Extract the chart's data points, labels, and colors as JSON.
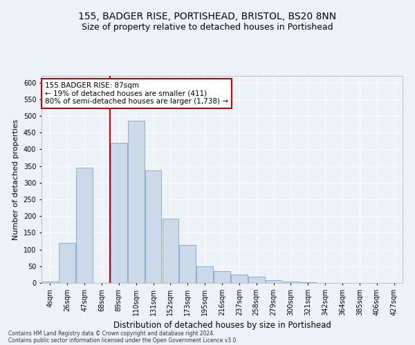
{
  "title1": "155, BADGER RISE, PORTISHEAD, BRISTOL, BS20 8NN",
  "title2": "Size of property relative to detached houses in Portishead",
  "xlabel": "Distribution of detached houses by size in Portishead",
  "ylabel": "Number of detached properties",
  "categories": [
    "4sqm",
    "26sqm",
    "47sqm",
    "68sqm",
    "89sqm",
    "110sqm",
    "131sqm",
    "152sqm",
    "173sqm",
    "195sqm",
    "216sqm",
    "237sqm",
    "258sqm",
    "279sqm",
    "300sqm",
    "321sqm",
    "342sqm",
    "364sqm",
    "385sqm",
    "406sqm",
    "427sqm"
  ],
  "values": [
    5,
    120,
    345,
    0,
    420,
    485,
    337,
    193,
    113,
    50,
    35,
    25,
    18,
    8,
    4,
    2,
    1,
    1,
    0,
    0,
    1
  ],
  "bar_color": "#ccd9ea",
  "bar_edge_color": "#7aa4c8",
  "red_line_bin": 4,
  "annotation_text": "155 BADGER RISE: 87sqm\n← 19% of detached houses are smaller (411)\n80% of semi-detached houses are larger (1,738) →",
  "annotation_box_facecolor": "#ffffff",
  "annotation_box_edgecolor": "#cc0000",
  "ylim": [
    0,
    620
  ],
  "yticks": [
    0,
    50,
    100,
    150,
    200,
    250,
    300,
    350,
    400,
    450,
    500,
    550,
    600
  ],
  "footnote1": "Contains HM Land Registry data © Crown copyright and database right 2024.",
  "footnote2": "Contains public sector information licensed under the Open Government Licence v3.0.",
  "background_color": "#edf2f9",
  "grid_color": "#ffffff",
  "title1_fontsize": 10,
  "title2_fontsize": 9,
  "xlabel_fontsize": 8.5,
  "ylabel_fontsize": 8,
  "tick_fontsize": 7,
  "annotation_fontsize": 7.5,
  "footnote_fontsize": 5.5
}
